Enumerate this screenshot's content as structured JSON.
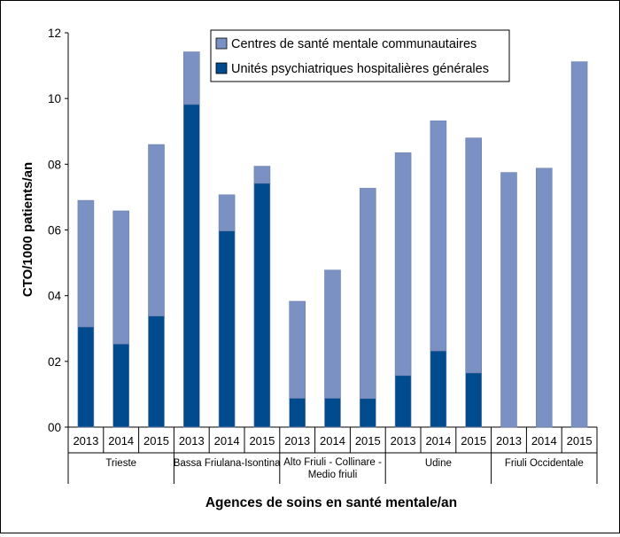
{
  "chart_data": {
    "type": "bar",
    "stacked": true,
    "title": "",
    "ylabel": "CTO/1000 patients/an",
    "xlabel": "Agences de soins en santé mentale/an",
    "ylim": [
      0,
      12
    ],
    "yticks": [
      {
        "value": 0,
        "label": "00"
      },
      {
        "value": 2,
        "label": "02"
      },
      {
        "value": 4,
        "label": "04"
      },
      {
        "value": 6,
        "label": "06"
      },
      {
        "value": 8,
        "label": "08"
      },
      {
        "value": 10,
        "label": "10"
      },
      {
        "value": 12,
        "label": "12"
      }
    ],
    "legend_position": "top-right",
    "groups": [
      {
        "label": "Trieste",
        "categories": [
          "2013",
          "2014",
          "2015"
        ]
      },
      {
        "label": "Bassa Friulana-Isontina",
        "categories": [
          "2013",
          "2014",
          "2015"
        ]
      },
      {
        "label": "Alto Friuli - Collinare - Medio friuli",
        "label_lines": [
          "Alto Friuli - Collinare -",
          "Medio friuli"
        ],
        "categories": [
          "2013",
          "2014",
          "2015"
        ]
      },
      {
        "label": "Udine",
        "categories": [
          "2013",
          "2014",
          "2015"
        ]
      },
      {
        "label": "Friuli Occidentale",
        "categories": [
          "2013",
          "2014",
          "2015"
        ]
      }
    ],
    "series": [
      {
        "name": "Unités psychiatriques hospitalières générales",
        "color": "#004B8D",
        "values": [
          3.05,
          2.53,
          3.38,
          9.82,
          5.97,
          7.42,
          0.88,
          0.88,
          0.87,
          1.57,
          2.32,
          1.65,
          0,
          0,
          0
        ]
      },
      {
        "name": "Centres de santé mentale communautaires",
        "color": "#7B91C3",
        "values": [
          3.85,
          4.05,
          5.22,
          1.6,
          1.1,
          0.52,
          2.95,
          3.9,
          6.4,
          6.78,
          7.0,
          7.15,
          7.75,
          7.88,
          11.12
        ]
      }
    ],
    "legend_order": [
      "Centres de santé mentale communautaires",
      "Unités psychiatriques hospitalières générales"
    ],
    "grid": false
  }
}
